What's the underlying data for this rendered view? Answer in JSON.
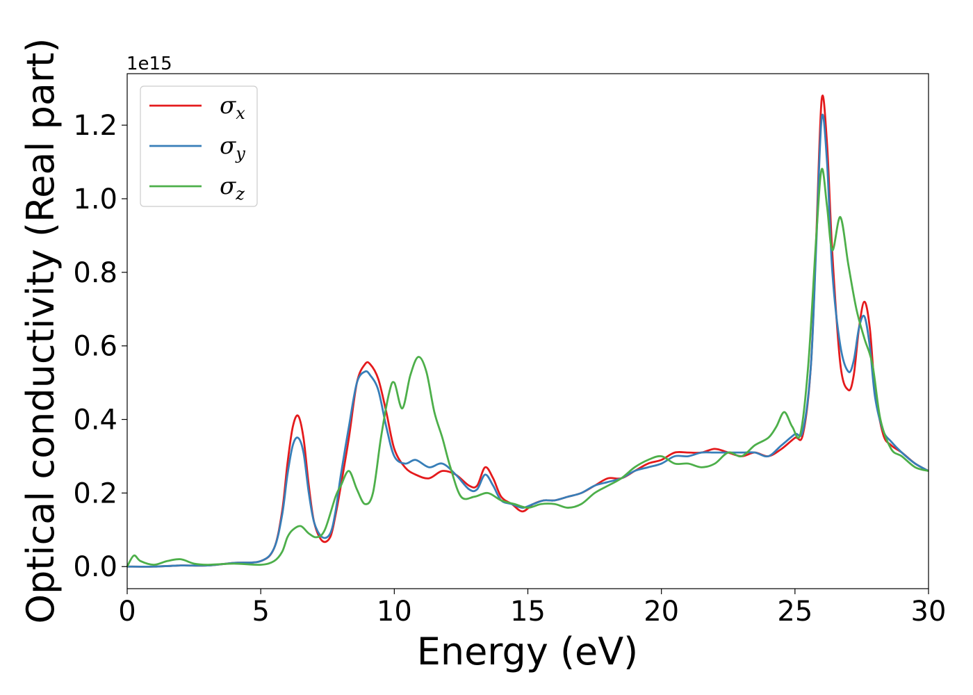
{
  "chart_data": {
    "type": "line",
    "xlabel": "Energy (eV)",
    "ylabel": "Optical conductivity (Real part)",
    "y_offset_label": "1e15",
    "xlim": [
      0,
      30
    ],
    "ylim": [
      -0.06,
      1.34
    ],
    "x_ticks": [
      0,
      5,
      10,
      15,
      20,
      25,
      30
    ],
    "x_tick_labels": [
      "0",
      "5",
      "10",
      "15",
      "20",
      "25",
      "30"
    ],
    "y_ticks": [
      0.0,
      0.2,
      0.4,
      0.6,
      0.8,
      1.0,
      1.2
    ],
    "y_tick_labels": [
      "0.0",
      "0.2",
      "0.4",
      "0.6",
      "0.8",
      "1.0",
      "1.2"
    ],
    "grid": false,
    "legend_position": "top-left",
    "series": [
      {
        "name": "σx",
        "symbol": "σ",
        "subscript": "x",
        "color": "#e41a1c",
        "x": [
          0,
          1,
          2,
          3,
          4,
          5,
          5.5,
          5.8,
          6.0,
          6.2,
          6.4,
          6.6,
          6.8,
          7.0,
          7.3,
          7.6,
          7.8,
          8.0,
          8.3,
          8.6,
          8.9,
          9.1,
          9.4,
          9.7,
          10.0,
          10.4,
          10.8,
          11.3,
          11.8,
          12.3,
          12.8,
          13.1,
          13.4,
          13.7,
          14.0,
          14.4,
          14.8,
          15.2,
          15.6,
          16.0,
          16.5,
          17.0,
          17.5,
          18.0,
          18.5,
          19.0,
          19.5,
          20.0,
          20.5,
          21.0,
          21.5,
          22.0,
          22.5,
          23.0,
          23.5,
          24.0,
          24.5,
          25.0,
          25.3,
          25.6,
          25.8,
          26.0,
          26.2,
          26.4,
          26.7,
          27.0,
          27.2,
          27.4,
          27.6,
          27.8,
          28.0,
          28.3,
          28.6,
          29.0,
          29.5,
          30.0
        ],
        "y": [
          0.0,
          0.0,
          0.003,
          0.003,
          0.01,
          0.015,
          0.05,
          0.15,
          0.28,
          0.38,
          0.41,
          0.35,
          0.22,
          0.12,
          0.07,
          0.08,
          0.14,
          0.22,
          0.35,
          0.5,
          0.55,
          0.55,
          0.51,
          0.42,
          0.32,
          0.27,
          0.25,
          0.24,
          0.26,
          0.25,
          0.22,
          0.22,
          0.27,
          0.24,
          0.19,
          0.17,
          0.15,
          0.17,
          0.18,
          0.18,
          0.19,
          0.2,
          0.22,
          0.24,
          0.24,
          0.26,
          0.28,
          0.29,
          0.31,
          0.31,
          0.31,
          0.32,
          0.31,
          0.3,
          0.31,
          0.3,
          0.32,
          0.35,
          0.36,
          0.55,
          0.9,
          1.27,
          1.15,
          0.85,
          0.55,
          0.48,
          0.52,
          0.65,
          0.72,
          0.65,
          0.48,
          0.36,
          0.33,
          0.31,
          0.28,
          0.26
        ]
      },
      {
        "name": "σy",
        "symbol": "σ",
        "subscript": "y",
        "color": "#377eb8",
        "x": [
          0,
          1,
          2,
          3,
          4,
          5,
          5.5,
          5.8,
          6.0,
          6.2,
          6.4,
          6.6,
          6.8,
          7.0,
          7.3,
          7.6,
          7.8,
          8.0,
          8.3,
          8.6,
          8.9,
          9.1,
          9.4,
          9.7,
          10.0,
          10.4,
          10.8,
          11.3,
          11.8,
          12.3,
          12.8,
          13.1,
          13.4,
          13.7,
          14.0,
          14.4,
          14.8,
          15.2,
          15.6,
          16.0,
          16.5,
          17.0,
          17.5,
          18.0,
          18.5,
          19.0,
          19.5,
          20.0,
          20.5,
          21.0,
          21.5,
          22.0,
          22.5,
          23.0,
          23.5,
          24.0,
          24.5,
          25.0,
          25.3,
          25.6,
          25.8,
          26.0,
          26.2,
          26.4,
          26.7,
          27.0,
          27.2,
          27.4,
          27.6,
          27.8,
          28.0,
          28.3,
          28.6,
          29.0,
          29.5,
          30.0
        ],
        "y": [
          0.0,
          0.0,
          0.003,
          0.003,
          0.01,
          0.015,
          0.05,
          0.14,
          0.25,
          0.33,
          0.35,
          0.31,
          0.2,
          0.12,
          0.08,
          0.09,
          0.15,
          0.25,
          0.38,
          0.5,
          0.53,
          0.52,
          0.48,
          0.38,
          0.3,
          0.28,
          0.29,
          0.27,
          0.28,
          0.25,
          0.21,
          0.21,
          0.25,
          0.22,
          0.18,
          0.17,
          0.16,
          0.17,
          0.18,
          0.18,
          0.19,
          0.2,
          0.22,
          0.23,
          0.24,
          0.26,
          0.27,
          0.28,
          0.3,
          0.3,
          0.31,
          0.31,
          0.31,
          0.31,
          0.31,
          0.3,
          0.33,
          0.36,
          0.37,
          0.55,
          0.88,
          1.22,
          1.1,
          0.8,
          0.6,
          0.53,
          0.56,
          0.65,
          0.68,
          0.6,
          0.46,
          0.37,
          0.34,
          0.31,
          0.28,
          0.26
        ]
      },
      {
        "name": "σz",
        "symbol": "σ",
        "subscript": "z",
        "color": "#4daf4a",
        "x": [
          0,
          0.25,
          0.5,
          1.0,
          1.5,
          2.0,
          2.5,
          3.0,
          4.0,
          5.0,
          5.5,
          5.8,
          6.0,
          6.2,
          6.5,
          6.8,
          7.1,
          7.4,
          7.8,
          8.0,
          8.3,
          8.6,
          8.9,
          9.2,
          9.5,
          9.8,
          10.0,
          10.3,
          10.6,
          10.9,
          11.2,
          11.5,
          11.8,
          12.1,
          12.5,
          13.0,
          13.5,
          14.0,
          14.5,
          15.0,
          15.5,
          16.0,
          16.5,
          17.0,
          17.5,
          18.0,
          18.5,
          19.0,
          19.5,
          20.0,
          20.5,
          21.0,
          21.5,
          22.0,
          22.5,
          23.0,
          23.5,
          24.0,
          24.3,
          24.6,
          24.9,
          25.2,
          25.5,
          25.8,
          26.0,
          26.2,
          26.4,
          26.7,
          27.0,
          27.3,
          27.6,
          27.9,
          28.2,
          28.6,
          29.0,
          29.5,
          30.0
        ],
        "y": [
          0.0,
          0.03,
          0.015,
          0.005,
          0.015,
          0.02,
          0.008,
          0.005,
          0.008,
          0.005,
          0.015,
          0.04,
          0.08,
          0.1,
          0.11,
          0.09,
          0.08,
          0.1,
          0.19,
          0.22,
          0.26,
          0.21,
          0.17,
          0.2,
          0.35,
          0.47,
          0.5,
          0.43,
          0.52,
          0.57,
          0.53,
          0.42,
          0.35,
          0.27,
          0.19,
          0.19,
          0.2,
          0.18,
          0.17,
          0.16,
          0.17,
          0.17,
          0.16,
          0.17,
          0.2,
          0.22,
          0.24,
          0.27,
          0.29,
          0.3,
          0.28,
          0.28,
          0.27,
          0.28,
          0.31,
          0.3,
          0.33,
          0.35,
          0.38,
          0.42,
          0.38,
          0.36,
          0.55,
          0.9,
          1.08,
          0.98,
          0.86,
          0.95,
          0.82,
          0.7,
          0.62,
          0.55,
          0.4,
          0.32,
          0.3,
          0.27,
          0.26
        ]
      }
    ]
  }
}
